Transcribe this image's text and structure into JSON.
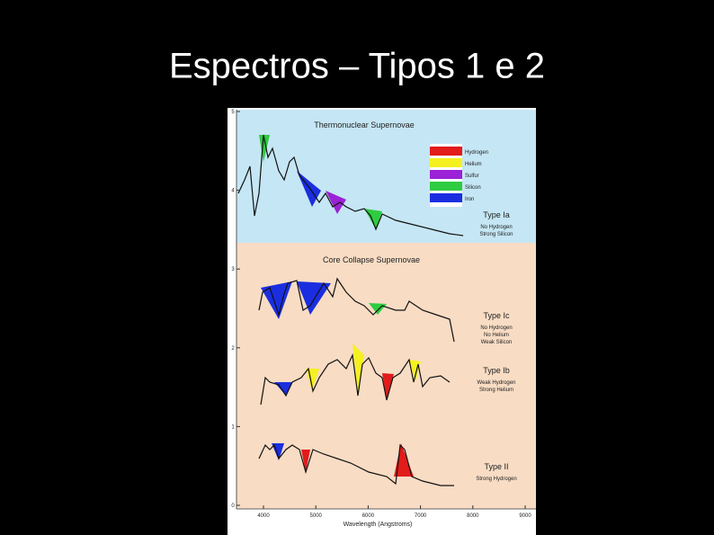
{
  "title": "Espectros – Tipos 1 e 2",
  "figure": {
    "panels": [
      "Thermonuclear Supernovae",
      "Core Collapse Supernovae"
    ],
    "legend": [
      "Hydrogen",
      "Helium",
      "Sulfur",
      "Silicon",
      "Iron"
    ],
    "types": [
      {
        "name": "Type Ia",
        "notes": [
          "No Hydrogen",
          "Strong Silicon"
        ]
      },
      {
        "name": "Type Ic",
        "notes": [
          "No Hydrogen",
          "No Helium",
          "Weak Silicon"
        ]
      },
      {
        "name": "Type Ib",
        "notes": [
          "Weak Hydrogen",
          "Strong Helium"
        ]
      },
      {
        "name": "Type II",
        "notes": [
          "Strong Hydrogen"
        ]
      }
    ],
    "x_axis": {
      "label": "Wavelength (Angstroms)",
      "ticks": [
        4000,
        5000,
        6000,
        7000,
        8000,
        9000
      ]
    },
    "y_axis": {
      "ticks": [
        5,
        4,
        3,
        2,
        1,
        0
      ]
    }
  }
}
